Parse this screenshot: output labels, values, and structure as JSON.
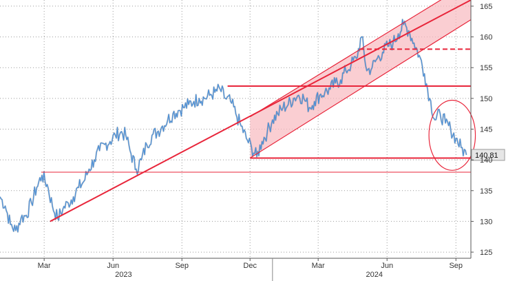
{
  "chart_data": {
    "type": "line",
    "title": "",
    "xlabel": "",
    "ylabel": "",
    "y_axis_side": "right",
    "ylim": [
      124,
      166
    ],
    "xlim": [
      "2023-01-01",
      "2024-09-21"
    ],
    "y_ticks": [
      125,
      130,
      135,
      140,
      145,
      150,
      155,
      160,
      165
    ],
    "x_ticks": [
      {
        "date": "2023-03-01",
        "label": "Mar"
      },
      {
        "date": "2023-06-01",
        "label": "Jun"
      },
      {
        "date": "2023-09-01",
        "label": "Sep"
      },
      {
        "date": "2023-12-01",
        "label": "Dec"
      },
      {
        "date": "2024-03-01",
        "label": "Mar"
      },
      {
        "date": "2024-06-01",
        "label": "Jun"
      },
      {
        "date": "2024-09-01",
        "label": "Sep"
      }
    ],
    "year_labels": [
      {
        "date": "2023-06-15",
        "label": "2023"
      },
      {
        "date": "2024-05-15",
        "label": "2024"
      }
    ],
    "year_divider_date": "2023-12-31",
    "last_value_label": "140.81",
    "grid": true,
    "colors": {
      "price": "#4a90d9",
      "price_dark": "#3b4b5e",
      "annotation": "#e8253a",
      "channel_fill": "#f8b9bf",
      "last_label_bg": "#e6e6e6",
      "grid": "#999999"
    },
    "series": [
      {
        "values": [
          [
            "2023-01-01",
            134.0
          ],
          [
            "2023-01-08",
            132.5
          ],
          [
            "2023-01-15",
            129.5
          ],
          [
            "2023-01-22",
            128.5
          ],
          [
            "2023-01-29",
            130.5
          ],
          [
            "2023-02-05",
            131.0
          ],
          [
            "2023-02-12",
            133.0
          ],
          [
            "2023-02-19",
            135.5
          ],
          [
            "2023-02-26",
            137.5
          ],
          [
            "2023-03-05",
            136.0
          ],
          [
            "2023-03-12",
            132.5
          ],
          [
            "2023-03-19",
            130.5
          ],
          [
            "2023-03-26",
            132.0
          ],
          [
            "2023-04-02",
            133.0
          ],
          [
            "2023-04-09",
            134.0
          ],
          [
            "2023-04-16",
            135.5
          ],
          [
            "2023-04-23",
            136.5
          ],
          [
            "2023-04-30",
            138.5
          ],
          [
            "2023-05-07",
            140.0
          ],
          [
            "2023-05-14",
            141.5
          ],
          [
            "2023-05-21",
            142.5
          ],
          [
            "2023-05-28",
            143.0
          ],
          [
            "2023-06-04",
            144.0
          ],
          [
            "2023-06-11",
            144.5
          ],
          [
            "2023-06-18",
            144.0
          ],
          [
            "2023-06-25",
            141.0
          ],
          [
            "2023-07-02",
            138.5
          ],
          [
            "2023-07-09",
            140.0
          ],
          [
            "2023-07-16",
            142.5
          ],
          [
            "2023-07-23",
            144.0
          ],
          [
            "2023-07-30",
            144.5
          ],
          [
            "2023-08-06",
            145.5
          ],
          [
            "2023-08-13",
            146.5
          ],
          [
            "2023-08-20",
            147.5
          ],
          [
            "2023-08-27",
            148.0
          ],
          [
            "2023-09-03",
            148.5
          ],
          [
            "2023-09-10",
            149.0
          ],
          [
            "2023-09-17",
            149.5
          ],
          [
            "2023-09-24",
            150.0
          ],
          [
            "2023-10-01",
            150.0
          ],
          [
            "2023-10-08",
            150.5
          ],
          [
            "2023-10-15",
            151.0
          ],
          [
            "2023-10-22",
            151.5
          ],
          [
            "2023-10-29",
            150.0
          ],
          [
            "2023-11-05",
            149.5
          ],
          [
            "2023-11-12",
            147.5
          ],
          [
            "2023-11-19",
            145.5
          ],
          [
            "2023-11-26",
            143.5
          ],
          [
            "2023-12-03",
            142.0
          ],
          [
            "2023-12-10",
            140.5
          ],
          [
            "2023-12-17",
            143.0
          ],
          [
            "2023-12-24",
            144.5
          ],
          [
            "2023-12-31",
            146.5
          ],
          [
            "2024-01-07",
            147.5
          ],
          [
            "2024-01-14",
            148.5
          ],
          [
            "2024-01-21",
            149.0
          ],
          [
            "2024-01-28",
            150.0
          ],
          [
            "2024-02-04",
            150.5
          ],
          [
            "2024-02-11",
            150.0
          ],
          [
            "2024-02-18",
            148.5
          ],
          [
            "2024-02-25",
            149.5
          ],
          [
            "2024-03-03",
            150.5
          ],
          [
            "2024-03-10",
            151.0
          ],
          [
            "2024-03-17",
            151.5
          ],
          [
            "2024-03-24",
            152.5
          ],
          [
            "2024-03-31",
            153.0
          ],
          [
            "2024-04-07",
            154.5
          ],
          [
            "2024-04-14",
            155.5
          ],
          [
            "2024-04-21",
            156.5
          ],
          [
            "2024-04-28",
            160.0
          ],
          [
            "2024-05-05",
            154.5
          ],
          [
            "2024-05-12",
            155.0
          ],
          [
            "2024-05-19",
            156.5
          ],
          [
            "2024-05-26",
            157.5
          ],
          [
            "2024-06-02",
            158.5
          ],
          [
            "2024-06-09",
            159.0
          ],
          [
            "2024-06-16",
            160.5
          ],
          [
            "2024-06-23",
            162.0
          ],
          [
            "2024-06-30",
            161.0
          ],
          [
            "2024-07-07",
            159.0
          ],
          [
            "2024-07-14",
            157.0
          ],
          [
            "2024-07-21",
            154.0
          ],
          [
            "2024-07-28",
            150.0
          ],
          [
            "2024-08-04",
            146.5
          ],
          [
            "2024-08-11",
            147.5
          ],
          [
            "2024-08-18",
            146.0
          ],
          [
            "2024-08-25",
            145.0
          ],
          [
            "2024-09-01",
            143.5
          ],
          [
            "2024-09-08",
            142.0
          ],
          [
            "2024-09-15",
            140.81
          ]
        ]
      }
    ],
    "annotations": {
      "horizontal_lines": [
        {
          "y": 138.0,
          "from": "2023-02-25",
          "to": "2024-09-21",
          "style": "thin"
        },
        {
          "y": 140.3,
          "from": "2023-12-01",
          "to": "2024-09-21",
          "style": "solid"
        },
        {
          "y": 152.0,
          "from": "2023-11-01",
          "to": "2024-09-21",
          "style": "solid"
        },
        {
          "y": 158.0,
          "from": "2024-04-25",
          "to": "2024-09-21",
          "style": "dashed"
        }
      ],
      "trend_lines": [
        {
          "from": [
            "2023-03-09",
            130.0
          ],
          "to": [
            "2024-09-21",
            166.0
          ]
        }
      ],
      "channel": {
        "start": "2023-12-01",
        "end": "2024-09-21",
        "lower": [
          140.3,
          162.8
        ],
        "upper": [
          147.0,
          169.0
        ]
      },
      "ellipse": {
        "center": [
          "2024-08-27",
          144.0
        ],
        "width_days": 62,
        "height": 11.4
      }
    }
  }
}
